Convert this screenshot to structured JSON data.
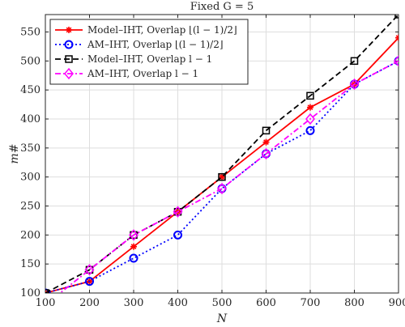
{
  "chart_data": {
    "type": "line",
    "title": "Fixed  G =  5",
    "xlabel": "N",
    "ylabel": "m#",
    "xlim": [
      100,
      900
    ],
    "ylim": [
      100,
      580
    ],
    "xticks": [
      100,
      200,
      300,
      400,
      500,
      600,
      700,
      800,
      900
    ],
    "yticks": [
      100,
      150,
      200,
      250,
      300,
      350,
      400,
      450,
      500,
      550
    ],
    "grid": true,
    "legend_position": "top-left",
    "x": [
      100,
      200,
      300,
      400,
      500,
      600,
      700,
      800,
      900
    ],
    "series": [
      {
        "name": "Model–IHT, Overlap ⌊(l − 1)/2⌋",
        "values": [
          100,
          120,
          180,
          240,
          300,
          360,
          420,
          460,
          540
        ],
        "color": "#ff0000",
        "line_style": "solid",
        "marker": "asterisk"
      },
      {
        "name": "AM–IHT, Overlap ⌊(l − 1)/2⌋",
        "values": [
          100,
          120,
          160,
          200,
          280,
          340,
          380,
          460,
          500
        ],
        "color": "#0000ff",
        "line_style": "dotted",
        "marker": "circle"
      },
      {
        "name": "Model–IHT, Overlap l − 1",
        "values": [
          100,
          140,
          200,
          240,
          300,
          380,
          440,
          500,
          580
        ],
        "color": "#000000",
        "line_style": "dashed",
        "marker": "square"
      },
      {
        "name": "AM–IHT, Overlap l − 1",
        "values": [
          80,
          140,
          200,
          240,
          280,
          340,
          400,
          460,
          500
        ],
        "color": "#ff00ff",
        "line_style": "dashdot",
        "marker": "diamond"
      }
    ]
  }
}
